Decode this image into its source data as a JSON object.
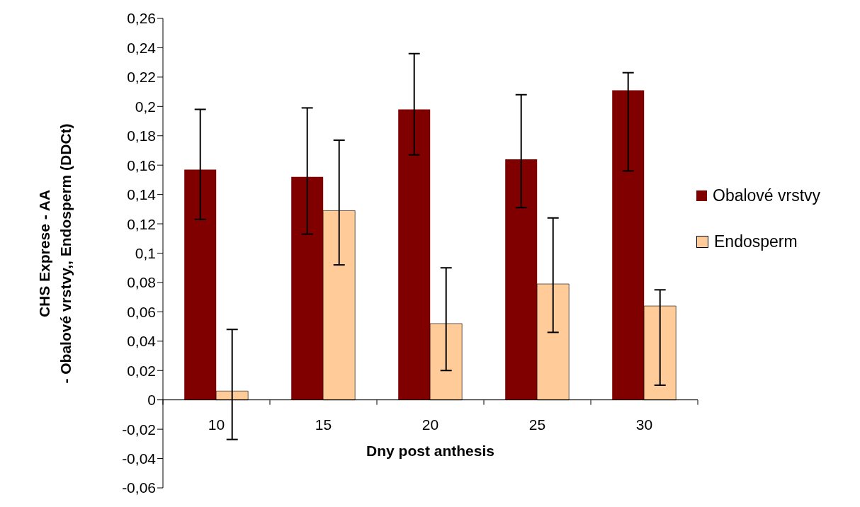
{
  "chart_data": {
    "type": "bar",
    "xlabel": "Dny post anthesis",
    "ylabel": "CHS Exprese - AA\n- Obalové vrstvy,, Endosperm (DDCt)",
    "categories": [
      "10",
      "15",
      "20",
      "25",
      "30"
    ],
    "series": [
      {
        "name": "Obalové vrstvy",
        "color": "#800000",
        "values": [
          0.157,
          0.152,
          0.198,
          0.164,
          0.211
        ],
        "errors": [
          [
            0.123,
            0.198
          ],
          [
            0.113,
            0.199
          ],
          [
            0.167,
            0.236
          ],
          [
            0.131,
            0.208
          ],
          [
            0.156,
            0.223
          ]
        ]
      },
      {
        "name": "Endosperm",
        "color": "#ffcc99",
        "values": [
          0.006,
          0.129,
          0.052,
          0.079,
          0.064
        ],
        "errors": [
          [
            -0.027,
            0.048
          ],
          [
            0.092,
            0.177
          ],
          [
            0.02,
            0.09
          ],
          [
            0.046,
            0.124
          ],
          [
            0.01,
            0.075
          ]
        ]
      }
    ],
    "ylim": [
      -0.06,
      0.26
    ],
    "yticks": [
      {
        "value": -0.06,
        "label": "-0,06"
      },
      {
        "value": -0.04,
        "label": "-0,04"
      },
      {
        "value": -0.02,
        "label": "-0,02"
      },
      0,
      {
        "value": 0.02,
        "label": "0,02"
      },
      {
        "value": 0.04,
        "label": "0,04"
      },
      {
        "value": 0.06,
        "label": "0,06"
      },
      {
        "value": 0.08,
        "label": "0,08"
      },
      {
        "value": 0.1,
        "label": "0,1"
      },
      {
        "value": 0.12,
        "label": "0,12"
      },
      {
        "value": 0.14,
        "label": "0,14"
      },
      {
        "value": 0.16,
        "label": "0,16"
      },
      {
        "value": 0.18,
        "label": "0,18"
      },
      {
        "value": 0.2,
        "label": "0,2"
      },
      {
        "value": 0.22,
        "label": "0,22"
      },
      {
        "value": 0.24,
        "label": "0,24"
      },
      {
        "value": 0.26,
        "label": "0,26"
      }
    ],
    "grid": false,
    "legend": "right"
  }
}
